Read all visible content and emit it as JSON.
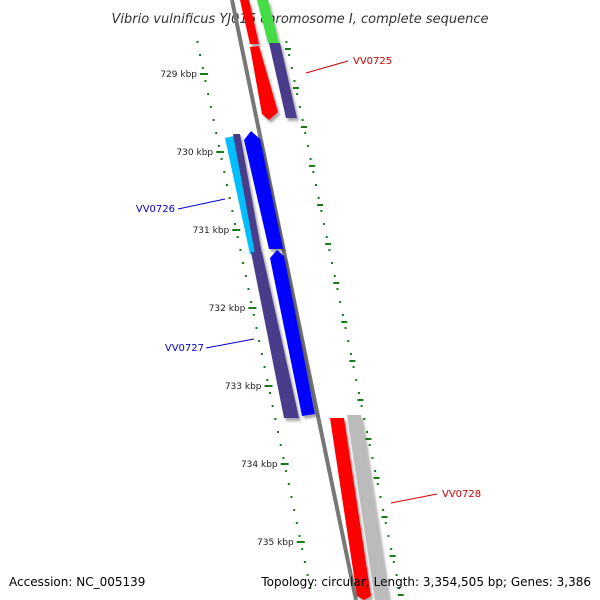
{
  "title": "Vibrio vulnificus YJ016 chromosome I, complete sequence",
  "accession": "Accession: NC_005139",
  "summary": "Topology: circular; Length: 3,354,505 bp; Genes: 3,386",
  "ticks": [
    {
      "label": "729 kbp",
      "kbp": 729
    },
    {
      "label": "730 kbp",
      "kbp": 730
    },
    {
      "label": "731 kbp",
      "kbp": 731
    },
    {
      "label": "732 kbp",
      "kbp": 732
    },
    {
      "label": "733 kbp",
      "kbp": 733
    },
    {
      "label": "734 kbp",
      "kbp": 734
    },
    {
      "label": "735 kbp",
      "kbp": 735
    }
  ],
  "genes": [
    {
      "label": "VV0725",
      "color": "#cc0000"
    },
    {
      "label": "VV0726",
      "color": "#0000cc"
    },
    {
      "label": "VV0727",
      "color": "#0000cc"
    },
    {
      "label": "VV0728",
      "color": "#cc0000"
    }
  ],
  "colors": {
    "backbone": "#777777",
    "ticks": "#1a7a1a",
    "red": "#ff0000",
    "green": "#44dd44",
    "slate": "#483d8b",
    "blue": "#0000ff",
    "cyan": "#00bfff",
    "gray": "#bbbbbb"
  }
}
